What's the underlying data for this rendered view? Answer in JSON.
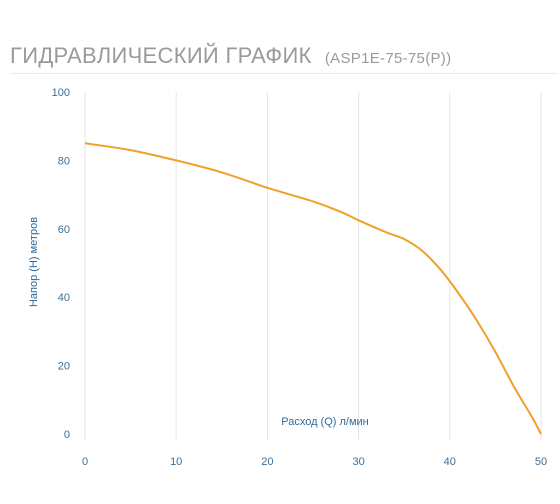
{
  "header": {
    "title": "ГИДРАВЛИЧЕСКИЙ ГРАФИК",
    "model": "(ASP1E-75-75(P))"
  },
  "colors": {
    "curve": "#f0a028",
    "grid": "#e6e6e6",
    "axis_text": "#3b6f96",
    "title": "#9a9a9a"
  },
  "chart_data": {
    "type": "line",
    "xlabel": "Расход (Q) л/мин",
    "ylabel": "Напор (H) метров",
    "xlim": [
      0,
      50
    ],
    "ylim": [
      0,
      100
    ],
    "x_ticks": [
      0,
      10,
      20,
      30,
      40,
      50
    ],
    "y_ticks": [
      0,
      20,
      40,
      60,
      80,
      100
    ],
    "grid": "vertical",
    "series": [
      {
        "x": [
          0,
          5,
          10,
          15,
          20,
          25,
          28,
          30,
          33,
          35,
          37,
          39,
          41,
          43,
          45,
          47,
          49,
          50
        ],
        "y": [
          85,
          83,
          80,
          76.5,
          72,
          68,
          65,
          62.5,
          59,
          57,
          53.5,
          48,
          41,
          33,
          24,
          14,
          5,
          0
        ]
      }
    ]
  }
}
